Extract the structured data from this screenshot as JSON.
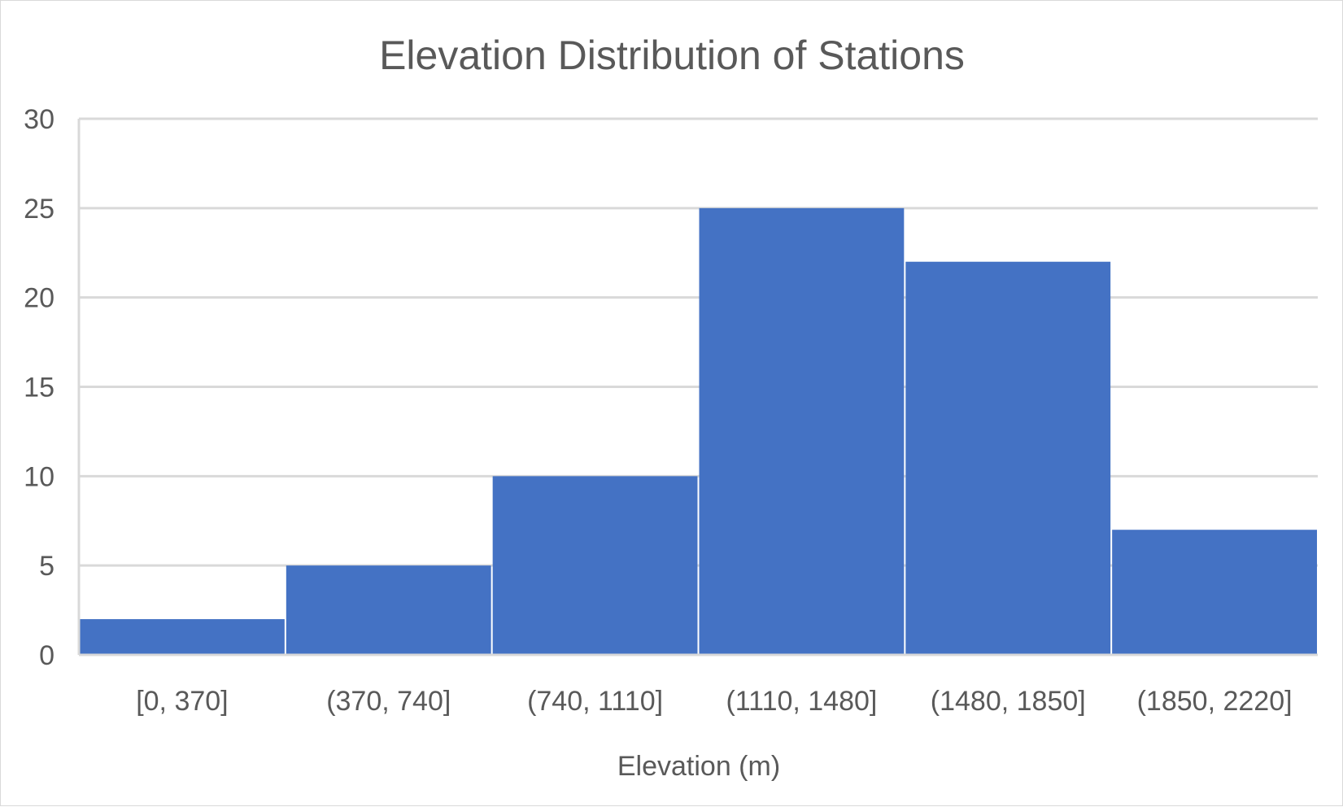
{
  "chart_data": {
    "type": "bar",
    "title": "Elevation Distribution of Stations",
    "xlabel": "Elevation (m)",
    "ylabel": "",
    "categories": [
      "[0, 370]",
      "(370, 740]",
      "(740, 1110]",
      "(1110, 1480]",
      "(1480, 1850]",
      "(1850, 2220]"
    ],
    "values": [
      2,
      5,
      10,
      25,
      22,
      7
    ],
    "ylim": [
      0,
      30
    ],
    "yticks": [
      0,
      5,
      10,
      15,
      20,
      25,
      30
    ],
    "grid": true,
    "legend": "none",
    "bar_color": "#4472C4"
  }
}
